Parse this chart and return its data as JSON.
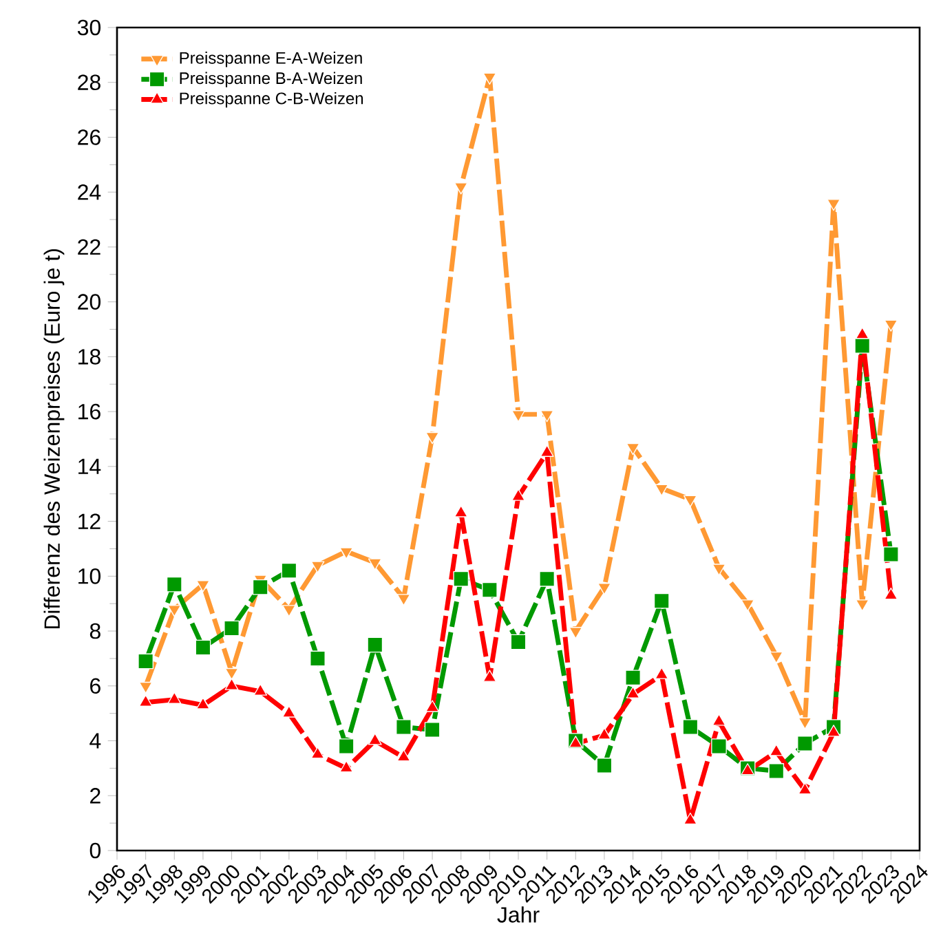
{
  "chart_data": {
    "type": "line",
    "xlabel": "Jahr",
    "ylabel": "Differenz des Weizenpreises (Euro je t)",
    "x": [
      1997,
      1998,
      1999,
      2000,
      2001,
      2002,
      2003,
      2004,
      2005,
      2006,
      2007,
      2008,
      2009,
      2010,
      2011,
      2012,
      2013,
      2014,
      2015,
      2016,
      2017,
      2018,
      2019,
      2020,
      2021,
      2022,
      2023
    ],
    "series": [
      {
        "name": "Preisspanne E-A-Weizen",
        "color": "#ff9933",
        "marker": "triangle-down",
        "values": [
          6.0,
          8.8,
          9.7,
          6.5,
          9.9,
          8.8,
          10.4,
          10.9,
          10.5,
          9.2,
          15.1,
          24.2,
          28.2,
          15.9,
          15.9,
          8.0,
          9.6,
          14.7,
          13.2,
          12.8,
          10.3,
          9.0,
          7.1,
          4.7,
          23.6,
          9.0,
          19.2
        ]
      },
      {
        "name": "Preisspanne B-A-Weizen",
        "color": "#009900",
        "marker": "square",
        "values": [
          6.9,
          9.7,
          7.4,
          8.1,
          9.6,
          10.2,
          7.0,
          3.8,
          7.5,
          4.5,
          4.4,
          9.9,
          9.5,
          7.6,
          9.9,
          4.0,
          3.1,
          6.3,
          9.1,
          4.5,
          3.8,
          3.0,
          2.9,
          3.9,
          4.5,
          18.4,
          10.8
        ]
      },
      {
        "name": "Preisspanne C-B-Weizen",
        "color": "#ff0000",
        "marker": "triangle",
        "values": [
          5.4,
          5.5,
          5.3,
          6.0,
          5.8,
          5.0,
          3.5,
          3.0,
          4.0,
          3.4,
          5.2,
          12.3,
          6.3,
          12.9,
          14.5,
          3.9,
          4.2,
          5.7,
          6.4,
          1.1,
          4.7,
          2.9,
          3.6,
          2.2,
          4.3,
          18.8,
          9.3
        ]
      }
    ],
    "xlim": [
      1996,
      2024
    ],
    "xticks": [
      1996,
      1997,
      1998,
      1999,
      2000,
      2001,
      2002,
      2003,
      2004,
      2005,
      2006,
      2007,
      2008,
      2009,
      2010,
      2011,
      2012,
      2013,
      2014,
      2015,
      2016,
      2017,
      2018,
      2019,
      2020,
      2021,
      2022,
      2023,
      2024
    ],
    "ylim": [
      0,
      30
    ],
    "yticks": [
      0,
      2,
      4,
      6,
      8,
      10,
      12,
      14,
      16,
      18,
      20,
      22,
      24,
      26,
      28,
      30
    ],
    "legend": "top left",
    "line_style": "dashed",
    "grid": false
  }
}
